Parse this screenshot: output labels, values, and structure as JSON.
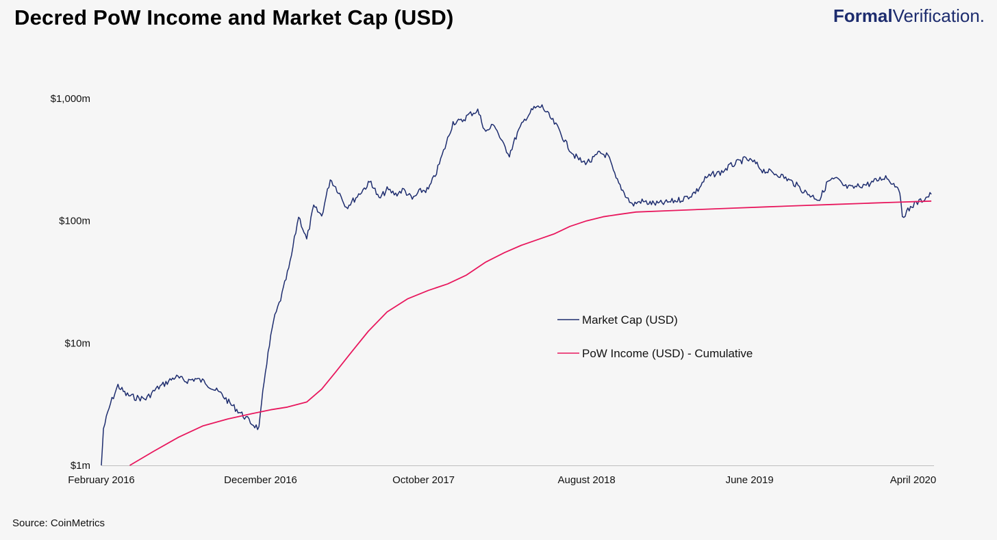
{
  "header": {
    "title": "Decred PoW Income and Market Cap (USD)",
    "brand_strong": "Formal",
    "brand_light": "Verification."
  },
  "footer": {
    "source": "Source: CoinMetrics"
  },
  "colors": {
    "market_cap": "#1d2c6e",
    "pow_income": "#e8175d",
    "background": "#f6f6f6"
  },
  "chart_data": {
    "type": "line",
    "title": "Decred PoW Income and Market Cap (USD)",
    "xlabel": "",
    "ylabel": "",
    "yscale": "log",
    "ylim": [
      1,
      1000
    ],
    "ytick_values": [
      1,
      10,
      100,
      1000
    ],
    "ytick_labels": [
      "$1m",
      "$10m",
      "$100m",
      "$1,000m"
    ],
    "xlim": [
      "2016-02-08",
      "2020-05-10"
    ],
    "xtick_dates": [
      "2016-02-08",
      "2016-12-01",
      "2017-10-01",
      "2018-08-01",
      "2019-06-01",
      "2020-04-01"
    ],
    "xtick_labels": [
      "February 2016",
      "December 2016",
      "October 2017",
      "August 2018",
      "June 2019",
      "April 2020"
    ],
    "grid": false,
    "legend": "center-right",
    "series": [
      {
        "name": "Market Cap (USD)",
        "x": [
          "2016-02-08",
          "2016-02-12",
          "2016-02-25",
          "2016-03-10",
          "2016-03-25",
          "2016-04-10",
          "2016-05-01",
          "2016-05-20",
          "2016-06-10",
          "2016-06-25",
          "2016-07-15",
          "2016-08-01",
          "2016-08-20",
          "2016-09-05",
          "2016-09-20",
          "2016-10-05",
          "2016-10-20",
          "2016-11-01",
          "2016-11-15",
          "2016-11-28",
          "2016-12-10",
          "2016-12-25",
          "2017-01-10",
          "2017-01-25",
          "2017-02-10",
          "2017-02-25",
          "2017-03-10",
          "2017-03-25",
          "2017-04-10",
          "2017-04-25",
          "2017-05-10",
          "2017-05-25",
          "2017-06-10",
          "2017-06-25",
          "2017-07-10",
          "2017-07-25",
          "2017-08-10",
          "2017-08-25",
          "2017-09-10",
          "2017-09-25",
          "2017-10-10",
          "2017-10-25",
          "2017-11-10",
          "2017-11-25",
          "2017-12-10",
          "2017-12-25",
          "2018-01-10",
          "2018-01-25",
          "2018-02-10",
          "2018-02-25",
          "2018-03-10",
          "2018-03-25",
          "2018-04-10",
          "2018-04-25",
          "2018-05-10",
          "2018-05-25",
          "2018-06-10",
          "2018-06-25",
          "2018-07-10",
          "2018-07-25",
          "2018-08-10",
          "2018-08-25",
          "2018-09-10",
          "2018-09-25",
          "2018-10-10",
          "2018-10-25",
          "2018-11-10",
          "2018-11-25",
          "2018-12-10",
          "2018-12-25",
          "2019-01-10",
          "2019-01-25",
          "2019-02-10",
          "2019-02-25",
          "2019-03-10",
          "2019-03-25",
          "2019-04-10",
          "2019-04-25",
          "2019-05-10",
          "2019-05-25",
          "2019-06-10",
          "2019-06-25",
          "2019-07-10",
          "2019-07-25",
          "2019-08-10",
          "2019-08-25",
          "2019-09-10",
          "2019-09-25",
          "2019-10-10",
          "2019-10-25",
          "2019-11-10",
          "2019-11-25",
          "2019-12-10",
          "2019-12-25",
          "2020-01-10",
          "2020-01-25",
          "2020-02-10",
          "2020-02-25",
          "2020-03-05",
          "2020-03-12",
          "2020-03-20",
          "2020-04-01",
          "2020-04-15",
          "2020-04-25",
          "2020-05-05"
        ],
        "values": [
          1.0,
          2.0,
          3.2,
          4.5,
          3.8,
          3.6,
          3.5,
          4.2,
          4.8,
          5.3,
          4.9,
          5.1,
          4.8,
          4.2,
          3.8,
          3.2,
          2.8,
          2.5,
          2.2,
          2.0,
          6.0,
          15.0,
          25.0,
          45.0,
          110.0,
          70.0,
          130.0,
          110.0,
          220.0,
          175.0,
          130.0,
          150.0,
          180.0,
          210.0,
          150.0,
          180.0,
          165.0,
          180.0,
          150.0,
          175.0,
          180.0,
          250.0,
          400.0,
          640.0,
          650.0,
          740.0,
          800.0,
          530.0,
          620.0,
          430.0,
          350.0,
          520.0,
          700.0,
          830.0,
          860.0,
          700.0,
          560.0,
          420.0,
          340.0,
          300.0,
          310.0,
          360.0,
          340.0,
          220.0,
          170.0,
          135.0,
          145.0,
          140.0,
          138.0,
          140.0,
          145.0,
          150.0,
          160.0,
          180.0,
          220.0,
          240.0,
          250.0,
          280.0,
          300.0,
          320.0,
          300.0,
          260.0,
          250.0,
          240.0,
          220.0,
          200.0,
          175.0,
          160.0,
          150.0,
          210.0,
          220.0,
          190.0,
          185.0,
          195.0,
          200.0,
          215.0,
          230.0,
          200.0,
          190.0,
          110.0,
          118.0,
          135.0,
          145.0,
          155.0,
          165.0
        ]
      },
      {
        "name": "PoW Income (USD) - Cumulative",
        "x": [
          "2016-04-01",
          "2016-05-15",
          "2016-07-01",
          "2016-08-15",
          "2016-10-01",
          "2016-11-15",
          "2016-12-20",
          "2017-01-20",
          "2017-02-25",
          "2017-03-25",
          "2017-04-20",
          "2017-05-20",
          "2017-06-20",
          "2017-07-25",
          "2017-09-01",
          "2017-10-10",
          "2017-11-15",
          "2017-12-20",
          "2018-01-25",
          "2018-03-01",
          "2018-04-01",
          "2018-05-01",
          "2018-06-01",
          "2018-07-01",
          "2018-08-01",
          "2018-09-01",
          "2018-10-01",
          "2018-11-01",
          "2019-01-01",
          "2019-03-01",
          "2019-05-01",
          "2019-07-01",
          "2019-09-01",
          "2019-11-01",
          "2020-01-01",
          "2020-03-01",
          "2020-05-05"
        ],
        "values": [
          1.0,
          1.3,
          1.7,
          2.1,
          2.4,
          2.65,
          2.85,
          3.0,
          3.3,
          4.2,
          5.8,
          8.5,
          12.5,
          18.0,
          23.0,
          27.0,
          30.5,
          36.0,
          46.0,
          55.0,
          63.0,
          70.0,
          78.0,
          90.0,
          100.0,
          108.0,
          113.0,
          118.0,
          121.0,
          124.0,
          127.0,
          130.0,
          133.0,
          136.0,
          139.0,
          142.0,
          145.0
        ]
      }
    ]
  }
}
